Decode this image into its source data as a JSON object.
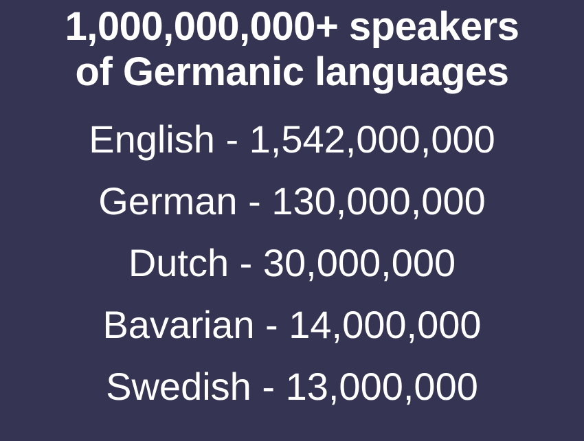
{
  "slide": {
    "title_line1": "1,000,000,000+ speakers",
    "title_line2": "of Germanic languages",
    "languages": [
      {
        "name": "English",
        "speakers": "1,542,000,000"
      },
      {
        "name": "German",
        "speakers": "130,000,000"
      },
      {
        "name": "Dutch",
        "speakers": "30,000,000"
      },
      {
        "name": "Bavarian",
        "speakers": "14,000,000"
      },
      {
        "name": "Swedish",
        "speakers": "13,000,000"
      }
    ],
    "separator": " - ",
    "colors": {
      "background": "#353553",
      "text": "#ffffff"
    }
  }
}
